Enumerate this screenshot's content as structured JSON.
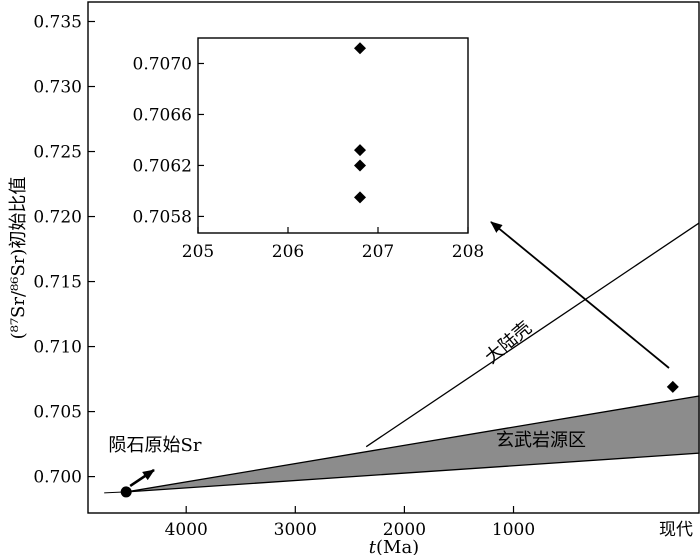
{
  "chart_data": [
    {
      "type": "line",
      "xlabel_italic": "t",
      "xlabel_rest": "(Ma)",
      "ylabel": "(⁸⁷Sr/⁸⁶Sr)初始比值",
      "xlim": [
        4900,
        -700
      ],
      "ylim": [
        0.6972,
        0.7365
      ],
      "x_ticks": [
        4000,
        3000,
        2000,
        1000
      ],
      "x_tick_labels": [
        "4000",
        "3000",
        "2000",
        "1000"
      ],
      "x_end_label": "现代",
      "y_ticks": [
        0.7,
        0.705,
        0.71,
        0.715,
        0.72,
        0.725,
        0.73,
        0.735
      ],
      "y_tick_labels": [
        "0.700",
        "0.705",
        "0.710",
        "0.715",
        "0.720",
        "0.725",
        "0.730",
        "0.735"
      ],
      "series": [
        {
          "name": "大陆壳",
          "kind": "line",
          "x": [
            2350,
            -700
          ],
          "y": [
            0.7023,
            0.7195
          ]
        },
        {
          "name": "玄武岩源区",
          "kind": "band",
          "x": [
            4550,
            -700
          ],
          "y_upper": [
            0.69882,
            0.7062
          ],
          "y_lower": [
            0.69882,
            0.7018
          ],
          "fill": "#8c8c8c"
        },
        {
          "name": "陨石原始Sr",
          "kind": "point",
          "x": [
            4550
          ],
          "y": [
            0.69882
          ],
          "marker": "circle"
        },
        {
          "name": "",
          "kind": "point",
          "x": [
            -460
          ],
          "y": [
            0.7069
          ],
          "marker": "diamond"
        }
      ],
      "annotations": [
        {
          "text": "陨石原始Sr",
          "target": "陨石原始Sr"
        },
        {
          "text": "大陆壳",
          "target": "大陆壳",
          "rotated": true
        },
        {
          "text": "玄武岩源区",
          "target": "玄武岩源区"
        }
      ]
    },
    {
      "type": "scatter",
      "inset": true,
      "xlim": [
        205,
        208
      ],
      "ylim": [
        0.70567,
        0.7072
      ],
      "x_ticks": [
        205,
        206,
        207,
        208
      ],
      "x_tick_labels": [
        "205",
        "206",
        "207",
        "208"
      ],
      "y_ticks": [
        0.7058,
        0.7062,
        0.7066,
        0.707
      ],
      "y_tick_labels": [
        "0.7058",
        "0.7062",
        "0.7066",
        "0.7070"
      ],
      "points": [
        {
          "x": 206.8,
          "y": 0.70712
        },
        {
          "x": 206.8,
          "y": 0.70632
        },
        {
          "x": 206.8,
          "y": 0.7062
        },
        {
          "x": 206.8,
          "y": 0.70595
        }
      ],
      "marker": "diamond"
    }
  ]
}
